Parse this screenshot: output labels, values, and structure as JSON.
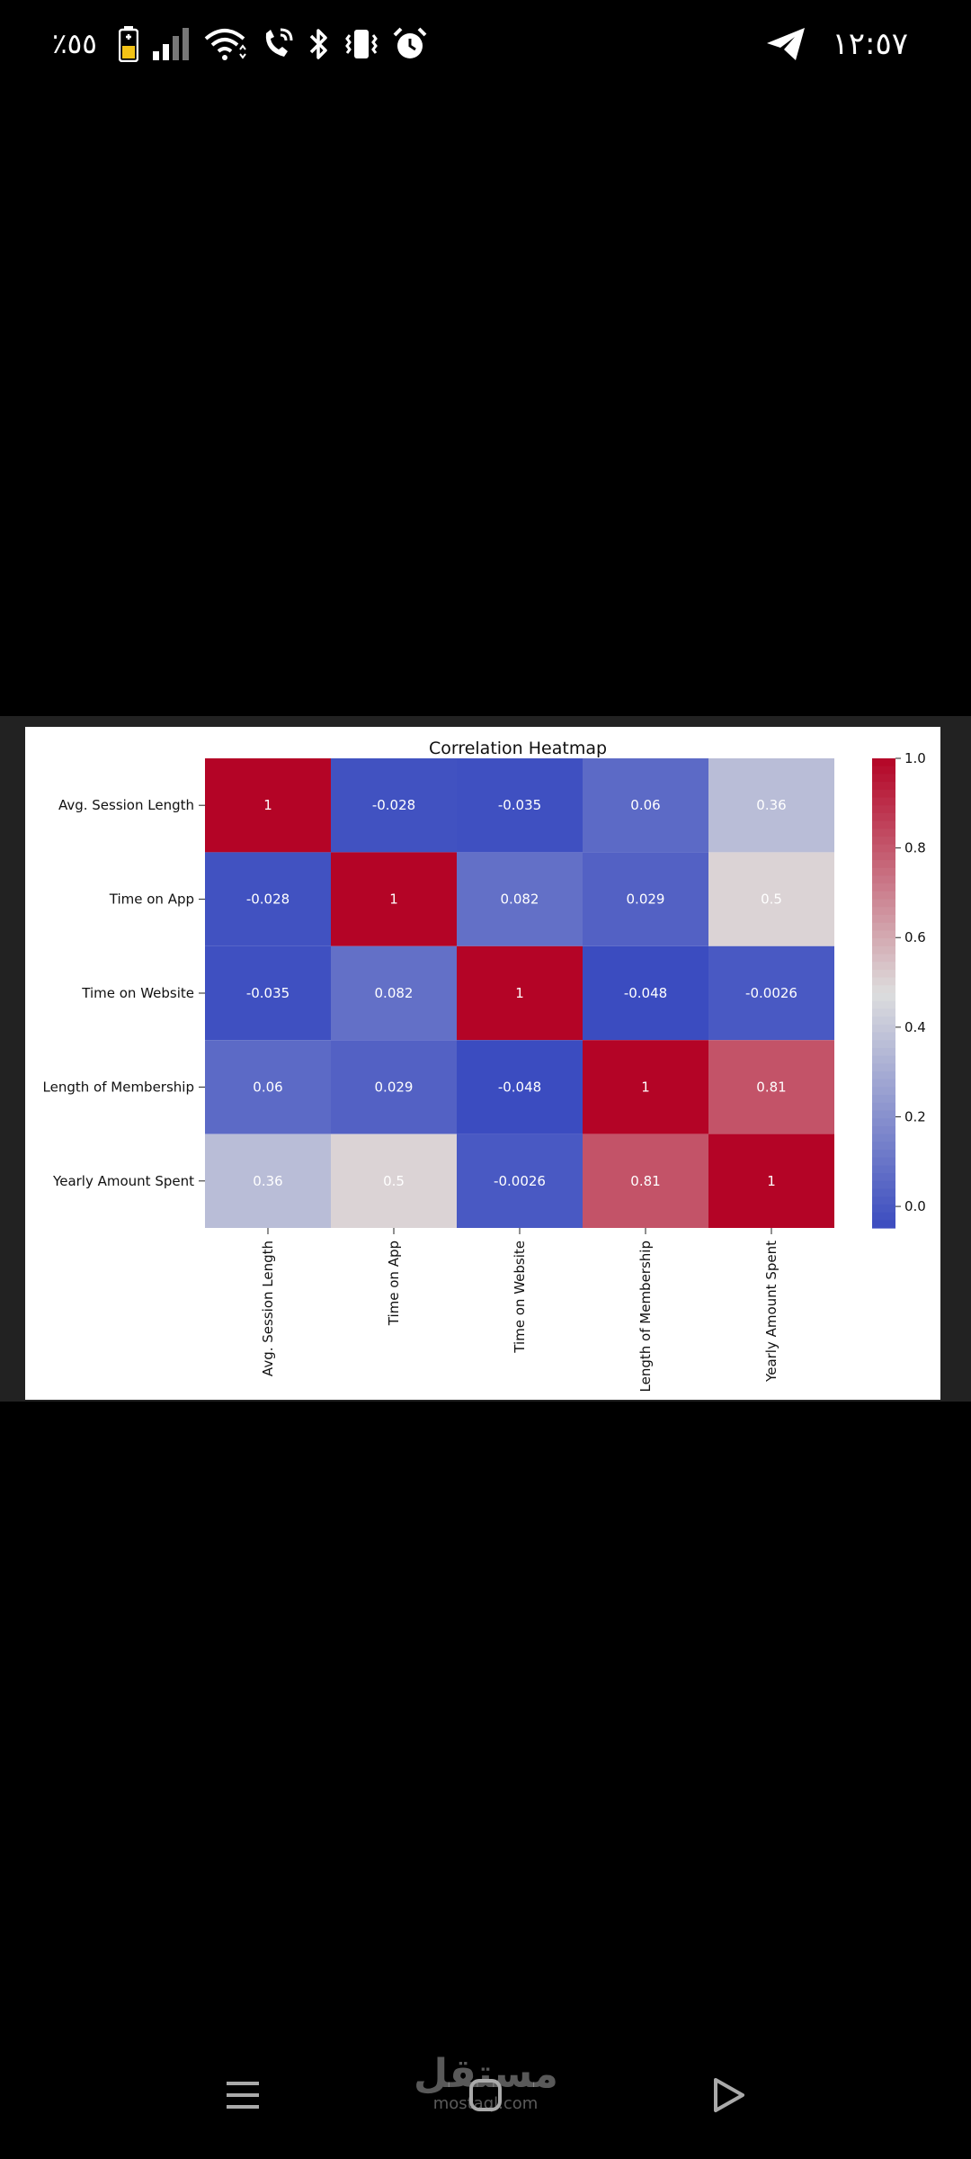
{
  "status_bar": {
    "battery_text": "٪٥٥",
    "time": "١٢:٥٧",
    "icons": [
      "battery-icon",
      "signal-icon",
      "wifi-icon",
      "wifi-calling-icon",
      "bluetooth-icon",
      "vibrate-icon",
      "alarm-icon",
      "telegram-icon"
    ]
  },
  "chart_data": {
    "type": "heatmap",
    "title": "Correlation Heatmap",
    "labels": [
      "Avg. Session Length",
      "Time on App",
      "Time on Website",
      "Length of Membership",
      "Yearly Amount Spent"
    ],
    "matrix": [
      [
        1,
        -0.028,
        -0.035,
        0.06,
        0.36
      ],
      [
        -0.028,
        1,
        0.082,
        0.029,
        0.5
      ],
      [
        -0.035,
        0.082,
        1,
        -0.048,
        -0.0026
      ],
      [
        0.06,
        0.029,
        -0.048,
        1,
        0.81
      ],
      [
        0.36,
        0.5,
        -0.0026,
        0.81,
        1
      ]
    ],
    "annotations": [
      [
        "1",
        "-0.028",
        "-0.035",
        "0.06",
        "0.36"
      ],
      [
        "-0.028",
        "1",
        "0.082",
        "0.029",
        "0.5"
      ],
      [
        "-0.035",
        "0.082",
        "1",
        "-0.048",
        "-0.0026"
      ],
      [
        "0.06",
        "0.029",
        "-0.048",
        "1",
        "0.81"
      ],
      [
        "0.36",
        "0.5",
        "-0.0026",
        "0.81",
        "1"
      ]
    ],
    "colormap": "coolwarm",
    "vmin": -0.048,
    "vmax": 1,
    "colorbar_ticks": [
      {
        "value": 1.0,
        "label": "1.0"
      },
      {
        "value": 0.8,
        "label": "0.8"
      },
      {
        "value": 0.6,
        "label": "0.6"
      },
      {
        "value": 0.4,
        "label": "0.4"
      },
      {
        "value": 0.2,
        "label": "0.2"
      },
      {
        "value": 0.0,
        "label": "0.0"
      }
    ],
    "colors": {
      "low": "#3b4cc0",
      "mid": "#dddddd",
      "high": "#b40426"
    }
  },
  "watermark": {
    "arabic": "مستقل",
    "latin": "mostaql.com"
  },
  "nav": {
    "menu_icon": "menu-icon",
    "home_icon": "home-icon",
    "back_icon": "back-triangle-icon"
  }
}
